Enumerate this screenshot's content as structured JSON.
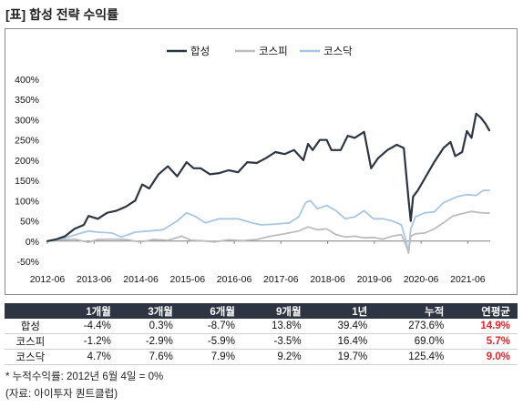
{
  "title": "[표] 합성 전략 수익률",
  "chart_data": {
    "type": "line",
    "y_tick_labels": [
      "400%",
      "350%",
      "300%",
      "250%",
      "200%",
      "150%",
      "100%",
      "50%",
      "0%",
      "-50%"
    ],
    "y_ticks": [
      400,
      350,
      300,
      250,
      200,
      150,
      100,
      50,
      0,
      -50
    ],
    "ylim": [
      -50,
      400
    ],
    "x_tick_labels": [
      "2012-06",
      "2013-06",
      "2014-06",
      "2015-06",
      "2016-06",
      "2017-06",
      "2018-06",
      "2019-06",
      "2020-06",
      "2021-06"
    ],
    "x_ticks": [
      2012.42,
      2013.42,
      2014.42,
      2015.42,
      2016.42,
      2017.42,
      2018.42,
      2019.42,
      2020.42,
      2021.42
    ],
    "xlim": [
      2012.42,
      2021.9
    ],
    "legend_position": "top-center",
    "series": [
      {
        "name": "합성",
        "color": "#2d3542",
        "width": 2.2,
        "x": [
          2012.42,
          2012.6,
          2012.8,
          2013.0,
          2013.2,
          2013.3,
          2013.5,
          2013.7,
          2013.9,
          2014.1,
          2014.3,
          2014.45,
          2014.6,
          2014.8,
          2015.0,
          2015.2,
          2015.4,
          2015.55,
          2015.7,
          2015.9,
          2016.1,
          2016.3,
          2016.5,
          2016.7,
          2016.9,
          2017.1,
          2017.3,
          2017.5,
          2017.7,
          2017.9,
          2018.0,
          2018.1,
          2018.25,
          2018.4,
          2018.5,
          2018.7,
          2018.85,
          2019.0,
          2019.2,
          2019.35,
          2019.5,
          2019.7,
          2019.9,
          2020.05,
          2020.15,
          2020.2,
          2020.25,
          2020.35,
          2020.5,
          2020.7,
          2020.9,
          2021.05,
          2021.15,
          2021.3,
          2021.4,
          2021.5,
          2021.6,
          2021.7,
          2021.8,
          2021.88
        ],
        "y": [
          0,
          4,
          12,
          30,
          40,
          62,
          55,
          70,
          75,
          85,
          100,
          140,
          130,
          165,
          185,
          160,
          195,
          180,
          180,
          165,
          168,
          175,
          170,
          195,
          193,
          205,
          220,
          215,
          225,
          200,
          240,
          225,
          250,
          250,
          225,
          225,
          260,
          255,
          270,
          180,
          205,
          225,
          238,
          230,
          105,
          50,
          110,
          125,
          155,
          195,
          230,
          245,
          210,
          220,
          272,
          255,
          315,
          305,
          290,
          273.6
        ]
      },
      {
        "name": "코스피",
        "color": "#bcbcbc",
        "width": 1.8,
        "x": [
          2012.42,
          2012.7,
          2013.0,
          2013.3,
          2013.5,
          2013.8,
          2014.1,
          2014.4,
          2014.7,
          2015.0,
          2015.3,
          2015.5,
          2015.7,
          2016.0,
          2016.3,
          2016.6,
          2016.9,
          2017.2,
          2017.5,
          2017.8,
          2018.0,
          2018.2,
          2018.4,
          2018.6,
          2018.8,
          2019.0,
          2019.2,
          2019.4,
          2019.6,
          2019.8,
          2020.0,
          2020.1,
          2020.15,
          2020.2,
          2020.3,
          2020.5,
          2020.7,
          2020.9,
          2021.1,
          2021.3,
          2021.5,
          2021.7,
          2021.88
        ],
        "y": [
          0,
          3,
          5,
          -3,
          4,
          5,
          4,
          -2,
          4,
          2,
          12,
          2,
          1,
          -2,
          3,
          1,
          4,
          12,
          18,
          25,
          35,
          28,
          30,
          16,
          10,
          12,
          8,
          9,
          5,
          12,
          16,
          -10,
          -28,
          12,
          18,
          20,
          30,
          45,
          62,
          68,
          73,
          70,
          69
        ]
      },
      {
        "name": "코스닥",
        "color": "#a8c6e2",
        "width": 1.8,
        "x": [
          2012.42,
          2012.7,
          2013.0,
          2013.3,
          2013.5,
          2013.8,
          2014.0,
          2014.3,
          2014.6,
          2014.9,
          2015.2,
          2015.4,
          2015.6,
          2015.8,
          2016.1,
          2016.3,
          2016.5,
          2016.8,
          2017.0,
          2017.3,
          2017.6,
          2017.8,
          2017.95,
          2018.05,
          2018.2,
          2018.4,
          2018.6,
          2018.8,
          2019.0,
          2019.2,
          2019.4,
          2019.6,
          2019.8,
          2020.0,
          2020.1,
          2020.15,
          2020.2,
          2020.3,
          2020.5,
          2020.7,
          2020.9,
          2021.0,
          2021.2,
          2021.4,
          2021.6,
          2021.75,
          2021.88
        ],
        "y": [
          0,
          5,
          15,
          25,
          22,
          20,
          10,
          22,
          25,
          28,
          50,
          70,
          60,
          45,
          55,
          55,
          55,
          45,
          40,
          42,
          45,
          60,
          95,
          100,
          80,
          88,
          75,
          55,
          60,
          75,
          55,
          55,
          50,
          40,
          0,
          -30,
          30,
          60,
          70,
          72,
          95,
          100,
          110,
          115,
          113,
          125,
          125.4
        ]
      }
    ]
  },
  "table": {
    "headers": [
      "",
      "1개월",
      "3개월",
      "6개월",
      "9개월",
      "1년",
      "누적",
      "연평균"
    ],
    "rows": [
      {
        "name": "합성",
        "values": [
          "-4.4%",
          "0.3%",
          "-8.7%",
          "13.8%",
          "39.4%",
          "273.6%"
        ],
        "annual": "14.9%"
      },
      {
        "name": "코스피",
        "values": [
          "-1.2%",
          "-2.9%",
          "-5.9%",
          "-3.5%",
          "16.4%",
          "69.0%"
        ],
        "annual": "5.7%"
      },
      {
        "name": "코스닥",
        "values": [
          "4.7%",
          "7.6%",
          "7.9%",
          "9.2%",
          "19.7%",
          "125.4%"
        ],
        "annual": "9.0%"
      }
    ]
  },
  "notes": {
    "note1": "* 누적수익률: 2012년 6월 4일 = 0%",
    "note2": "(자료: 아이투자 퀀트클럽)"
  }
}
